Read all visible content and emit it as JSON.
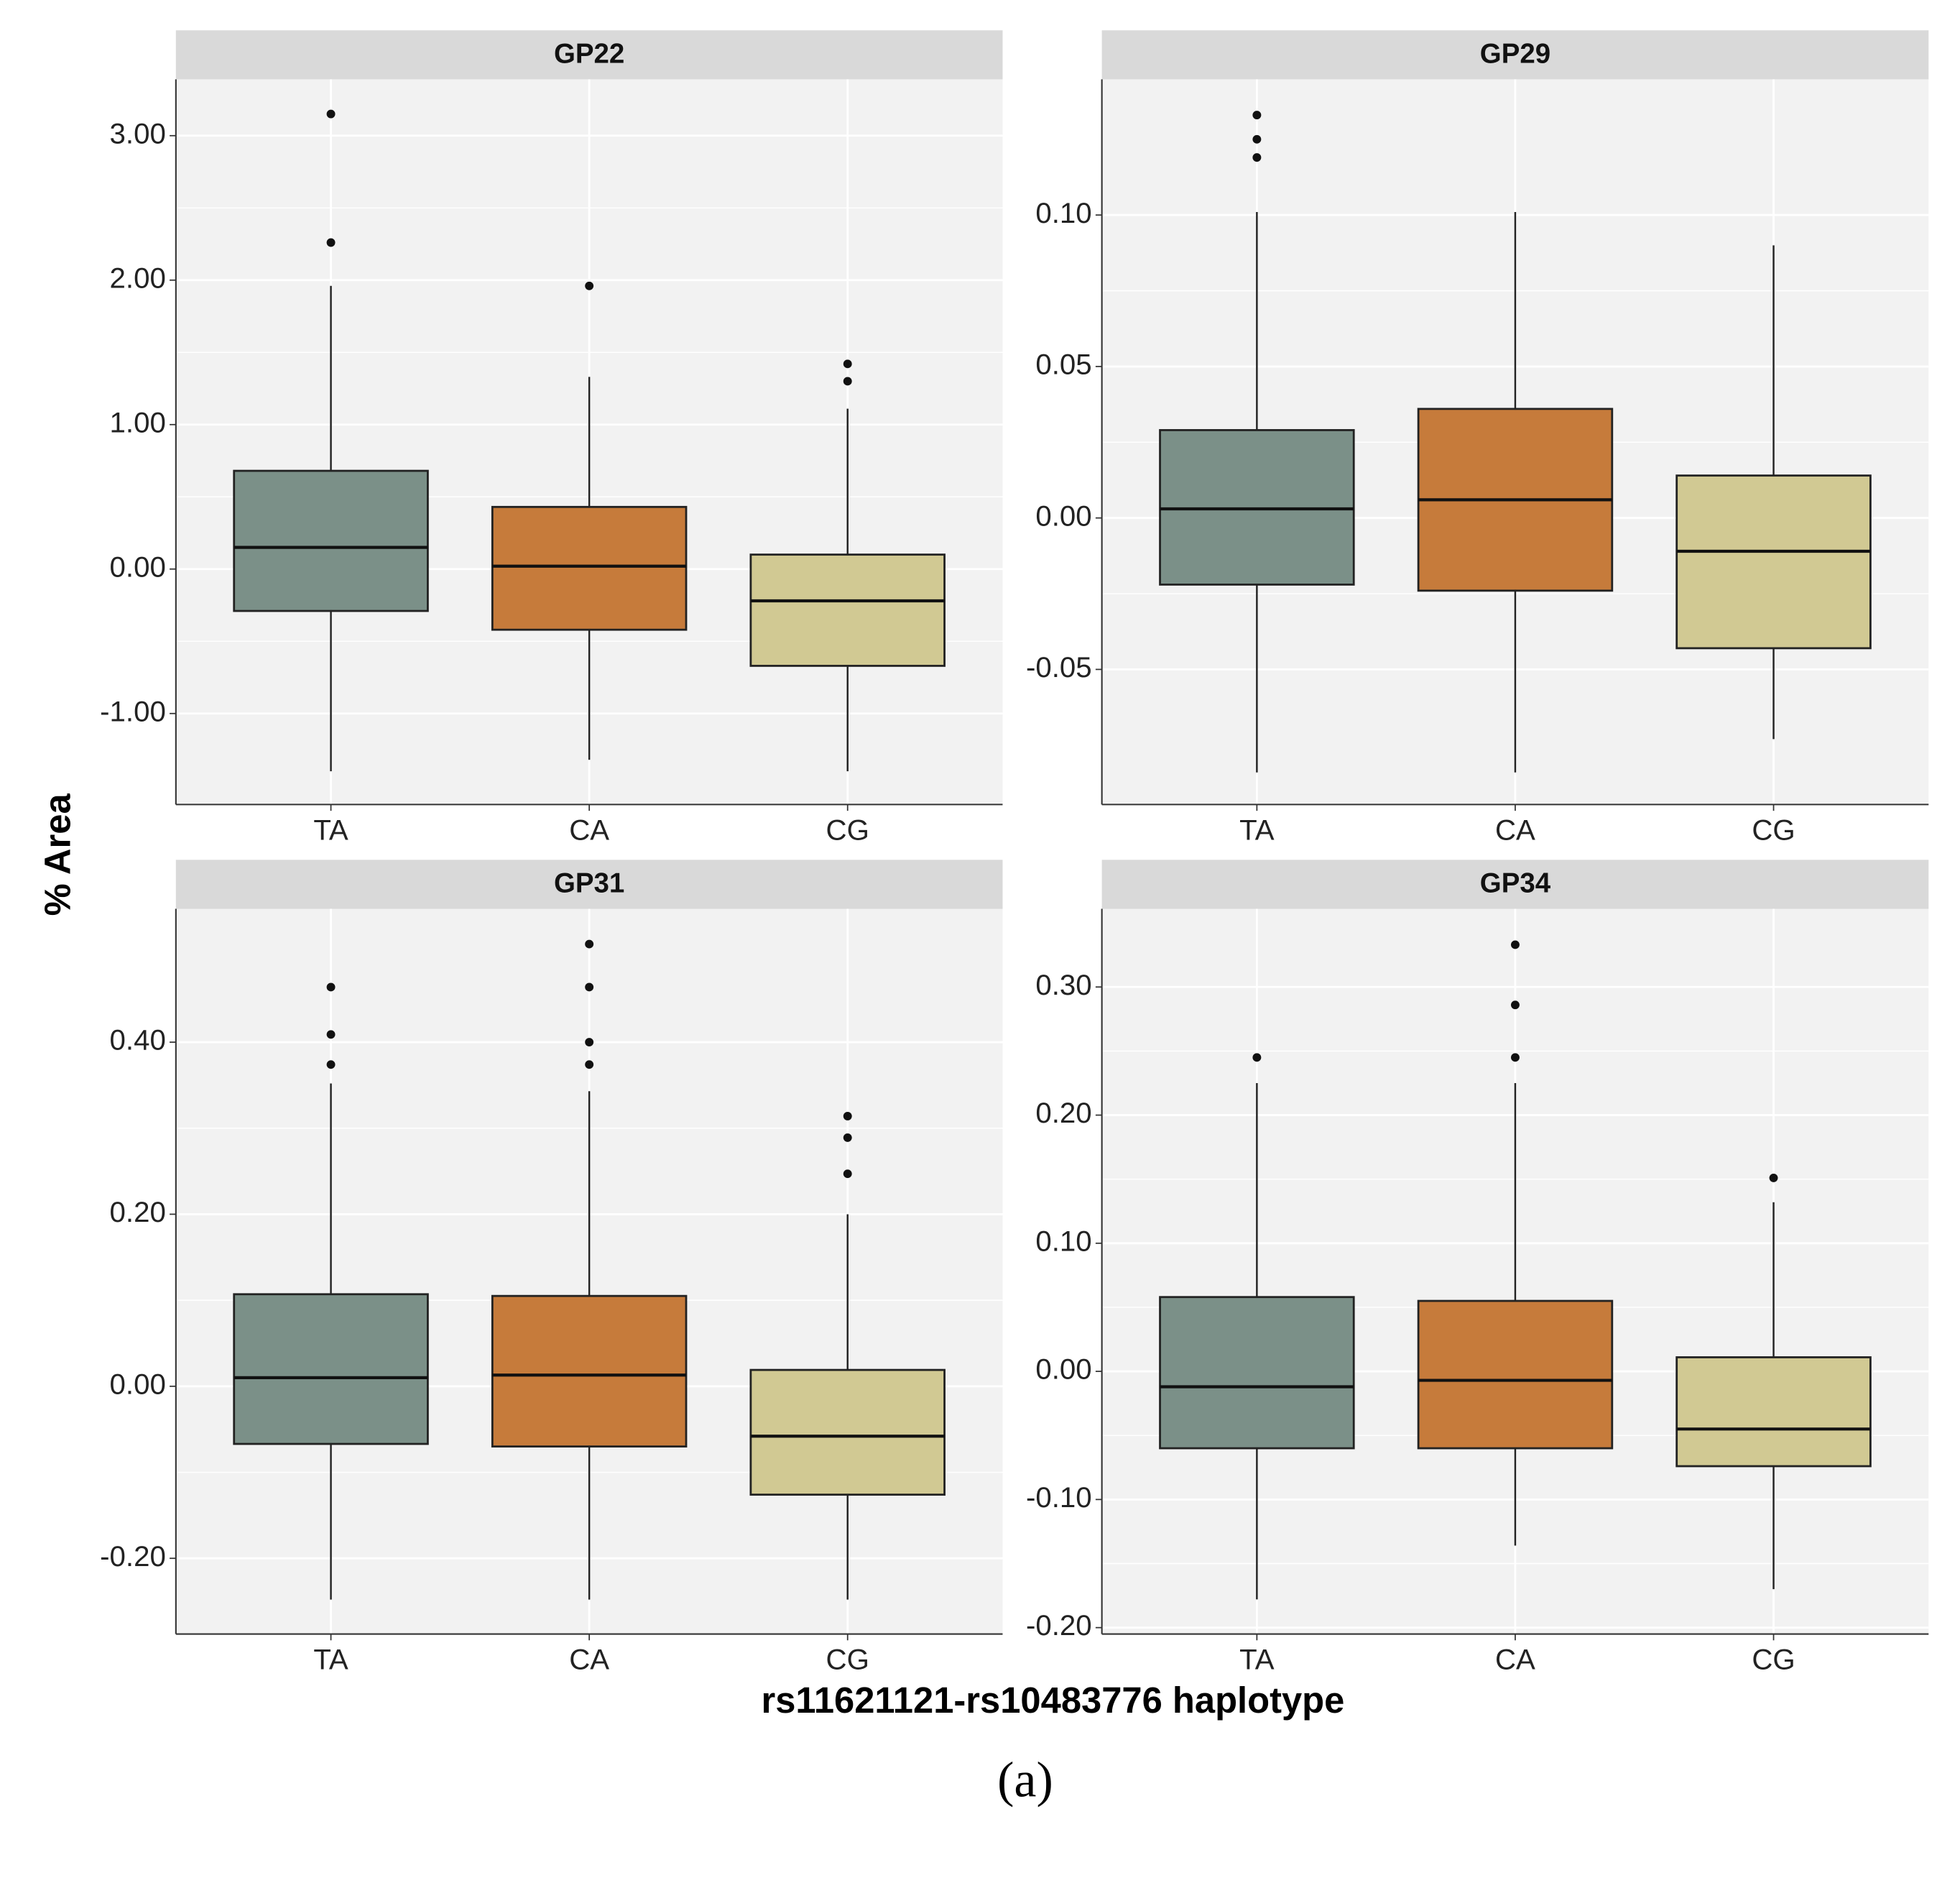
{
  "axis_labels": {
    "y": "% Area",
    "x": "rs11621121-rs10483776 haplotype"
  },
  "caption": "(a)",
  "chart_data": [
    {
      "type": "box",
      "title": "GP22",
      "categories": [
        "TA",
        "CA",
        "CG"
      ],
      "colors": [
        "#7b9088",
        "#c67b3b",
        "#d1c993"
      ],
      "ylim": [
        -1.63,
        3.39
      ],
      "yticks": [
        {
          "value": -1,
          "label": "-1.00"
        },
        {
          "value": 0,
          "label": "0.00"
        },
        {
          "value": 1,
          "label": "1.00"
        },
        {
          "value": 2,
          "label": "2.00"
        },
        {
          "value": 3,
          "label": "3.00"
        }
      ],
      "grid": true,
      "boxes": [
        {
          "whisker_low": -1.4,
          "q1": -0.29,
          "median": 0.15,
          "q3": 0.68,
          "whisker_high": 1.96,
          "outliers": [
            3.15,
            2.26
          ]
        },
        {
          "whisker_low": -1.32,
          "q1": -0.42,
          "median": 0.02,
          "q3": 0.43,
          "whisker_high": 1.33,
          "outliers": [
            1.96
          ]
        },
        {
          "whisker_low": -1.4,
          "q1": -0.67,
          "median": -0.22,
          "q3": 0.1,
          "whisker_high": 1.11,
          "outliers": [
            1.42,
            1.3
          ]
        }
      ]
    },
    {
      "type": "box",
      "title": "GP29",
      "categories": [
        "TA",
        "CA",
        "CG"
      ],
      "colors": [
        "#7b9088",
        "#c67b3b",
        "#d1c993"
      ],
      "ylim": [
        -0.0946,
        0.1448
      ],
      "yticks": [
        {
          "value": -0.05,
          "label": "-0.05"
        },
        {
          "value": 0,
          "label": "0.00"
        },
        {
          "value": 0.05,
          "label": "0.05"
        },
        {
          "value": 0.1,
          "label": "0.10"
        }
      ],
      "grid": true,
      "boxes": [
        {
          "whisker_low": -0.084,
          "q1": -0.022,
          "median": 0.003,
          "q3": 0.029,
          "whisker_high": 0.101,
          "outliers": [
            0.133,
            0.125,
            0.119
          ]
        },
        {
          "whisker_low": -0.084,
          "q1": -0.024,
          "median": 0.006,
          "q3": 0.036,
          "whisker_high": 0.101,
          "outliers": []
        },
        {
          "whisker_low": -0.073,
          "q1": -0.043,
          "median": -0.011,
          "q3": 0.014,
          "whisker_high": 0.09,
          "outliers": []
        }
      ]
    },
    {
      "type": "box",
      "title": "GP31",
      "categories": [
        "TA",
        "CA",
        "CG"
      ],
      "colors": [
        "#7b9088",
        "#c67b3b",
        "#d1c993"
      ],
      "ylim": [
        -0.288,
        0.555
      ],
      "yticks": [
        {
          "value": -0.2,
          "label": "-0.20"
        },
        {
          "value": 0,
          "label": "0.00"
        },
        {
          "value": 0.2,
          "label": "0.20"
        },
        {
          "value": 0.4,
          "label": "0.40"
        }
      ],
      "grid": true,
      "boxes": [
        {
          "whisker_low": -0.248,
          "q1": -0.067,
          "median": 0.01,
          "q3": 0.107,
          "whisker_high": 0.352,
          "outliers": [
            0.464,
            0.409,
            0.374
          ]
        },
        {
          "whisker_low": -0.248,
          "q1": -0.07,
          "median": 0.013,
          "q3": 0.105,
          "whisker_high": 0.343,
          "outliers": [
            0.514,
            0.464,
            0.4,
            0.374
          ]
        },
        {
          "whisker_low": -0.248,
          "q1": -0.126,
          "median": -0.058,
          "q3": 0.019,
          "whisker_high": 0.2,
          "outliers": [
            0.314,
            0.289,
            0.247
          ]
        }
      ]
    },
    {
      "type": "box",
      "title": "GP34",
      "categories": [
        "TA",
        "CA",
        "CG"
      ],
      "colors": [
        "#7b9088",
        "#c67b3b",
        "#d1c993"
      ],
      "ylim": [
        -0.205,
        0.361
      ],
      "yticks": [
        {
          "value": -0.2,
          "label": "-0.20"
        },
        {
          "value": -0.1,
          "label": "-0.10"
        },
        {
          "value": 0,
          "label": "0.00"
        },
        {
          "value": 0.1,
          "label": "0.10"
        },
        {
          "value": 0.2,
          "label": "0.20"
        },
        {
          "value": 0.3,
          "label": "0.30"
        }
      ],
      "grid": true,
      "boxes": [
        {
          "whisker_low": -0.178,
          "q1": -0.06,
          "median": -0.012,
          "q3": 0.058,
          "whisker_high": 0.225,
          "outliers": [
            0.245
          ]
        },
        {
          "whisker_low": -0.136,
          "q1": -0.06,
          "median": -0.007,
          "q3": 0.055,
          "whisker_high": 0.225,
          "outliers": [
            0.333,
            0.286,
            0.245
          ]
        },
        {
          "whisker_low": -0.17,
          "q1": -0.074,
          "median": -0.045,
          "q3": 0.011,
          "whisker_high": 0.132,
          "outliers": [
            0.151
          ]
        }
      ]
    }
  ]
}
